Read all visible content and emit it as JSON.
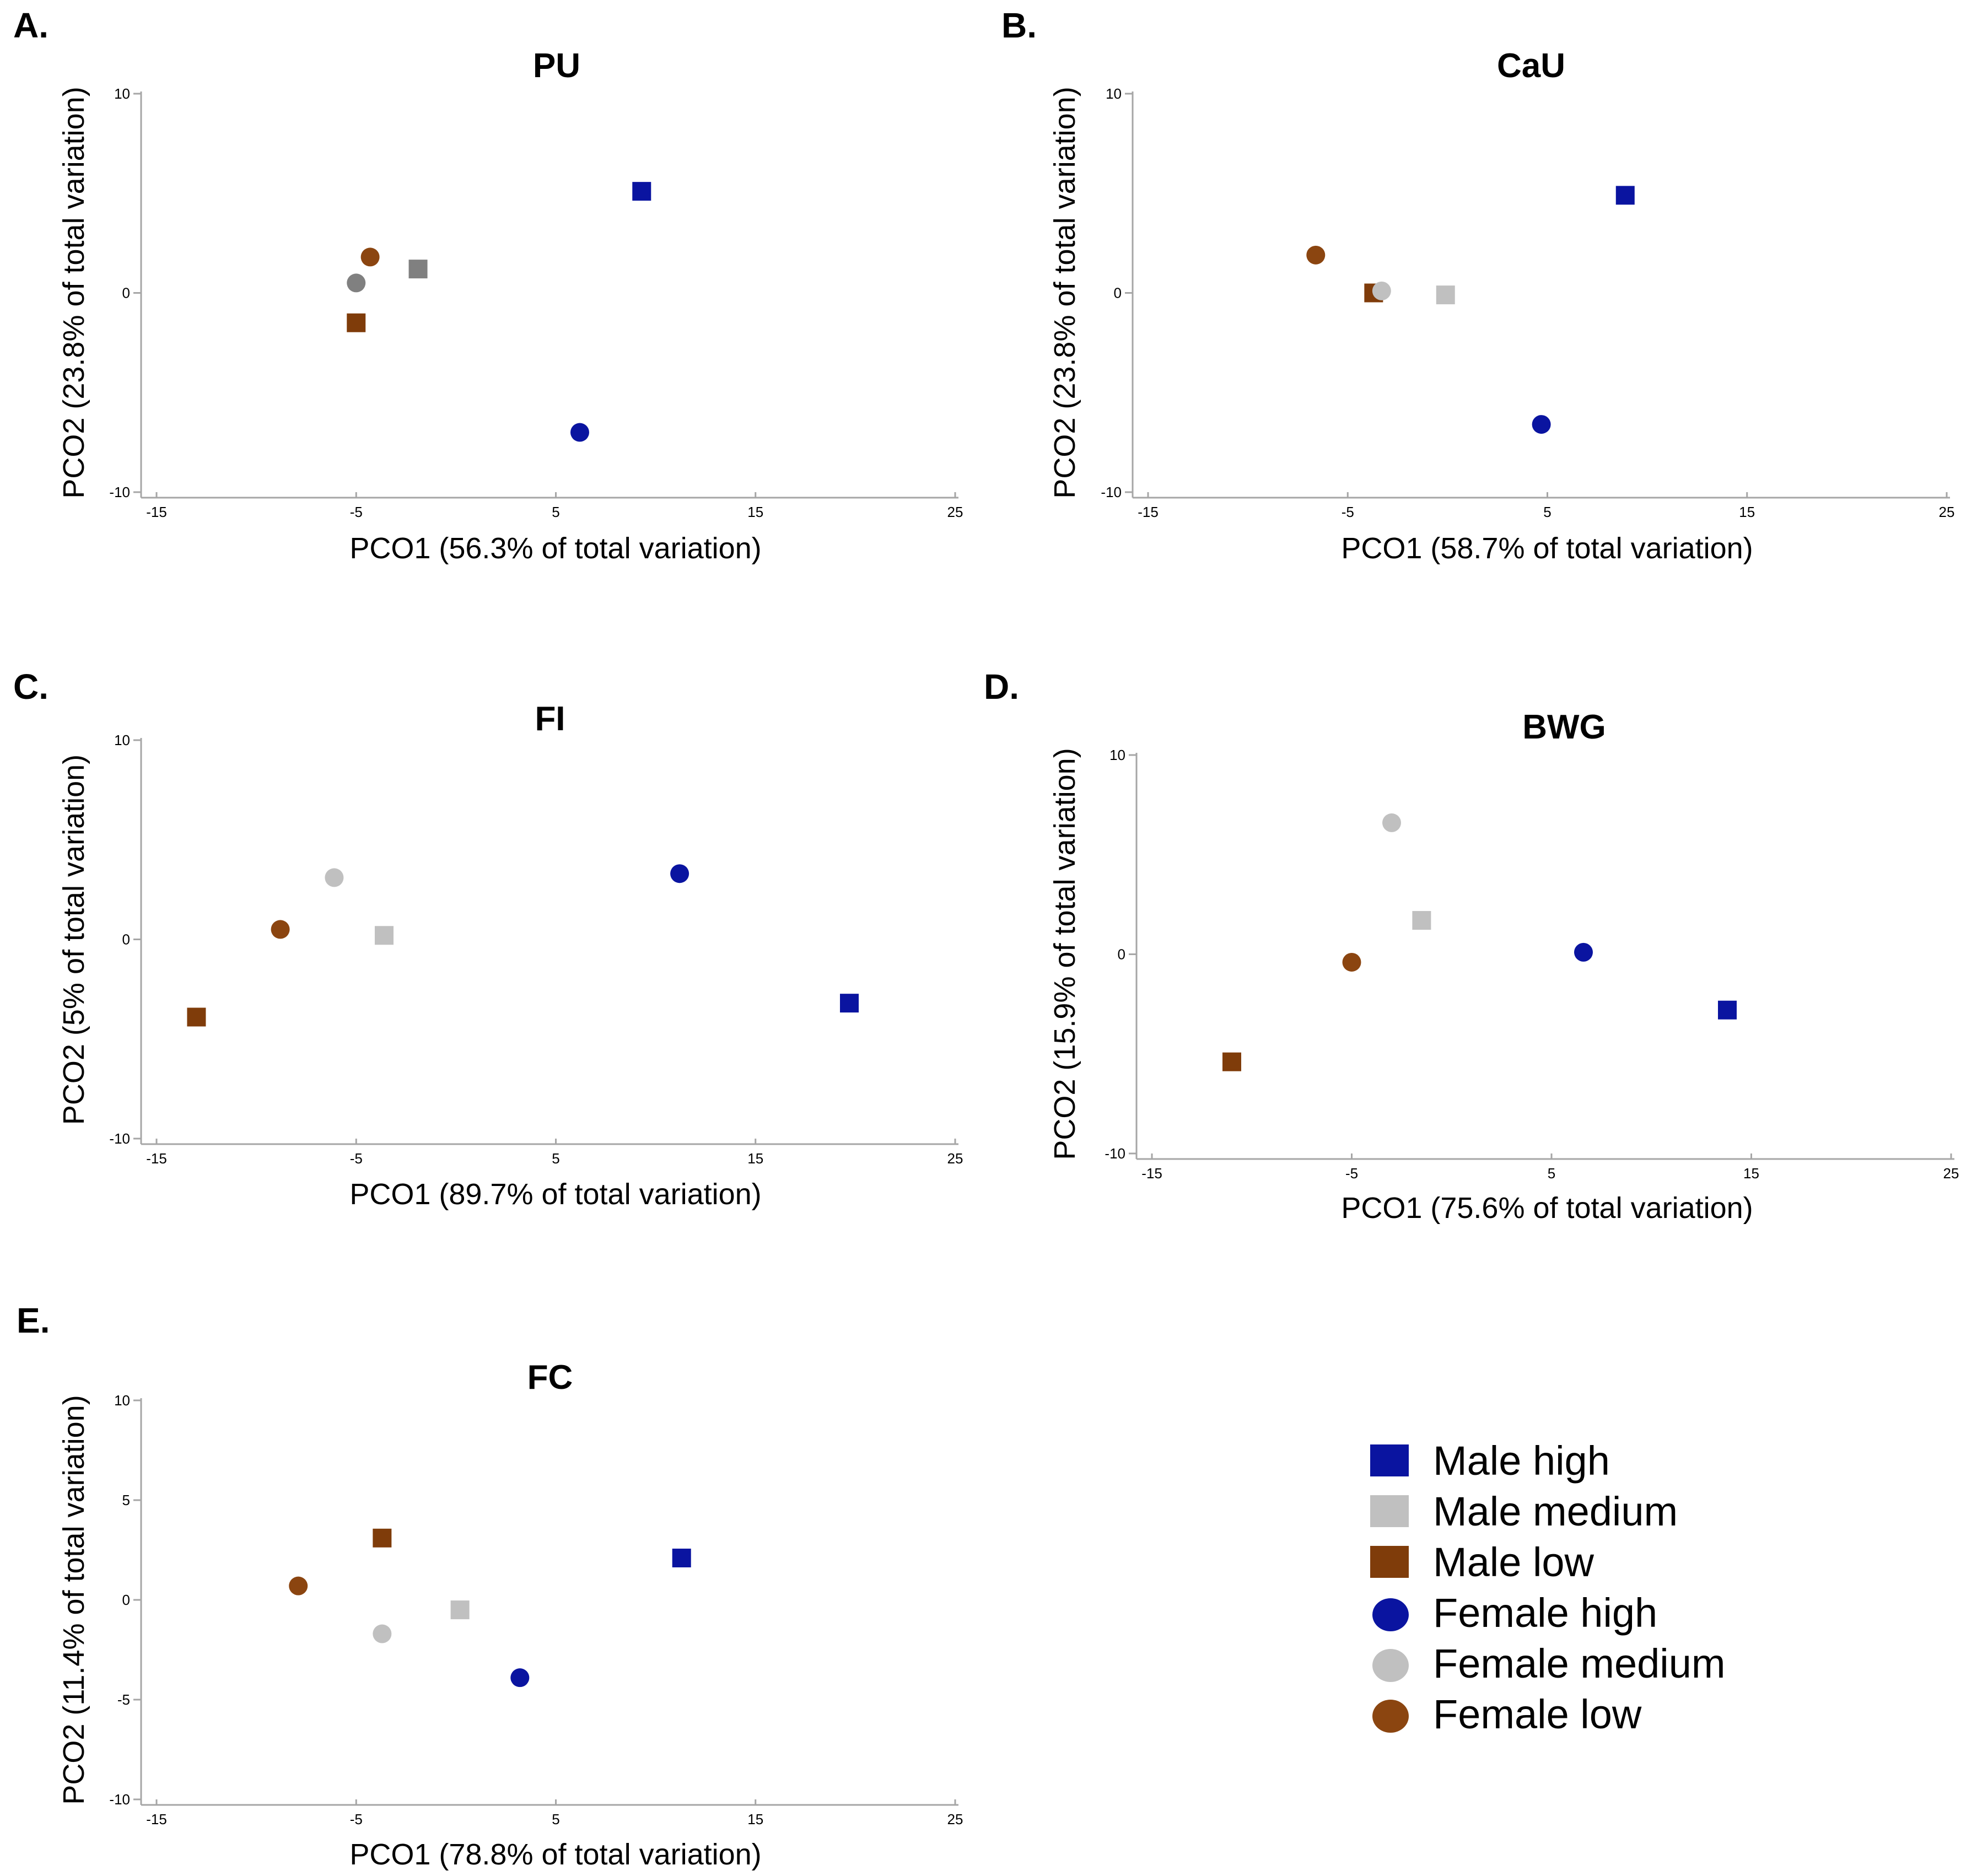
{
  "colors": {
    "male_high": "#0a14a0",
    "male_medium": "#c0c0c0",
    "male_low": "#7f3c0a",
    "female_high": "#0a14a0",
    "female_medium": "#c0c0c0",
    "female_low": "#8b4510",
    "gray_dark": "#808080"
  },
  "legend": [
    {
      "label": "Male high",
      "shape": "square",
      "color": "#0a14a0"
    },
    {
      "label": "Male medium",
      "shape": "square",
      "color": "#c0c0c0"
    },
    {
      "label": "Male low",
      "shape": "square",
      "color": "#7f3c0a"
    },
    {
      "label": "Female high",
      "shape": "circle",
      "color": "#0a14a0"
    },
    {
      "label": "Female medium",
      "shape": "circle",
      "color": "#c0c0c0"
    },
    {
      "label": "Female low",
      "shape": "circle",
      "color": "#8b4510"
    }
  ],
  "chart_data": [
    {
      "type": "scatter",
      "panel": "A.",
      "title": "PU",
      "xlabel": "PCO1 (56.3% of total variation)",
      "ylabel": "PCO2 (23.8% of total variation)",
      "xlim": [
        -15,
        25
      ],
      "ylim": [
        -10,
        10
      ],
      "xticks": [
        -15,
        -5,
        5,
        15,
        25
      ],
      "yticks": [
        -10,
        0,
        10
      ],
      "points": [
        {
          "series": "Male high",
          "shape": "square",
          "color": "#0a14a0",
          "x": 9.3,
          "y": 5.1
        },
        {
          "series": "Male medium",
          "shape": "square",
          "color": "#808080",
          "x": -1.9,
          "y": 1.2
        },
        {
          "series": "Male low",
          "shape": "square",
          "color": "#7f3c0a",
          "x": -5.0,
          "y": -1.5
        },
        {
          "series": "Female high",
          "shape": "circle",
          "color": "#0a14a0",
          "x": 6.2,
          "y": -7.0
        },
        {
          "series": "Female medium",
          "shape": "circle",
          "color": "#808080",
          "x": -5.0,
          "y": 0.5
        },
        {
          "series": "Female low",
          "shape": "circle",
          "color": "#8b4510",
          "x": -4.3,
          "y": 1.8
        }
      ]
    },
    {
      "type": "scatter",
      "panel": "B.",
      "title": "CaU",
      "xlabel": "PCO1 (58.7% of total variation)",
      "ylabel": "PCO2 (23.8% of total variation)",
      "xlim": [
        -15,
        25
      ],
      "ylim": [
        -10,
        10
      ],
      "xticks": [
        -15,
        -5,
        5,
        15,
        25
      ],
      "yticks": [
        -10,
        0,
        10
      ],
      "points": [
        {
          "series": "Male high",
          "shape": "square",
          "color": "#0a14a0",
          "x": 8.9,
          "y": 4.9
        },
        {
          "series": "Male medium",
          "shape": "square",
          "color": "#c0c0c0",
          "x": -0.1,
          "y": -0.1
        },
        {
          "series": "Male low",
          "shape": "square",
          "color": "#7f3c0a",
          "x": -3.7,
          "y": 0.0
        },
        {
          "series": "Female high",
          "shape": "circle",
          "color": "#0a14a0",
          "x": 4.7,
          "y": -6.6
        },
        {
          "series": "Female medium",
          "shape": "circle",
          "color": "#c0c0c0",
          "x": -3.3,
          "y": 0.1
        },
        {
          "series": "Female low",
          "shape": "circle",
          "color": "#8b4510",
          "x": -6.6,
          "y": 1.9
        }
      ]
    },
    {
      "type": "scatter",
      "panel": "C.",
      "title": "FI",
      "xlabel": "PCO1 (89.7% of total variation)",
      "ylabel": "PCO2 (5% of total variation)",
      "xlim": [
        -15,
        25
      ],
      "ylim": [
        -10,
        10
      ],
      "xticks": [
        -15,
        -5,
        5,
        15,
        25
      ],
      "yticks": [
        -10,
        0,
        10
      ],
      "points": [
        {
          "series": "Male high",
          "shape": "square",
          "color": "#0a14a0",
          "x": 19.7,
          "y": -3.2
        },
        {
          "series": "Male medium",
          "shape": "square",
          "color": "#c0c0c0",
          "x": -3.6,
          "y": 0.2
        },
        {
          "series": "Male low",
          "shape": "square",
          "color": "#7f3c0a",
          "x": -13.0,
          "y": -3.9
        },
        {
          "series": "Female high",
          "shape": "circle",
          "color": "#0a14a0",
          "x": 11.2,
          "y": 3.3
        },
        {
          "series": "Female medium",
          "shape": "circle",
          "color": "#c0c0c0",
          "x": -6.1,
          "y": 3.1
        },
        {
          "series": "Female low",
          "shape": "circle",
          "color": "#8b4510",
          "x": -8.8,
          "y": 0.5
        }
      ]
    },
    {
      "type": "scatter",
      "panel": "D.",
      "title": "BWG",
      "xlabel": "PCO1 (75.6% of total variation)",
      "ylabel": "PCO2 (15.9% of total variation)",
      "xlim": [
        -15,
        25
      ],
      "ylim": [
        -10,
        10
      ],
      "xticks": [
        -15,
        -5,
        5,
        15,
        25
      ],
      "yticks": [
        -10,
        0,
        10
      ],
      "points": [
        {
          "series": "Male high",
          "shape": "square",
          "color": "#0a14a0",
          "x": 13.8,
          "y": -2.8
        },
        {
          "series": "Male medium",
          "shape": "square",
          "color": "#c0c0c0",
          "x": -1.5,
          "y": 1.7
        },
        {
          "series": "Male low",
          "shape": "square",
          "color": "#7f3c0a",
          "x": -11.0,
          "y": -5.4
        },
        {
          "series": "Female high",
          "shape": "circle",
          "color": "#0a14a0",
          "x": 6.6,
          "y": 0.1
        },
        {
          "series": "Female medium",
          "shape": "circle",
          "color": "#c0c0c0",
          "x": -3.0,
          "y": 6.6
        },
        {
          "series": "Female low",
          "shape": "circle",
          "color": "#8b4510",
          "x": -5.0,
          "y": -0.4
        }
      ]
    },
    {
      "type": "scatter",
      "panel": "E.",
      "title": "FC",
      "xlabel": "PCO1 (78.8% of total variation)",
      "ylabel": "PCO2 (11.4% of total variation)",
      "xlim": [
        -15,
        25
      ],
      "ylim": [
        -10,
        10
      ],
      "xticks": [
        -15,
        -5,
        5,
        15,
        25
      ],
      "yticks": [
        -10,
        -5,
        0,
        5,
        10
      ],
      "points": [
        {
          "series": "Male high",
          "shape": "square",
          "color": "#0a14a0",
          "x": 11.3,
          "y": 2.1
        },
        {
          "series": "Male medium",
          "shape": "square",
          "color": "#c0c0c0",
          "x": 0.2,
          "y": -0.5
        },
        {
          "series": "Male low",
          "shape": "square",
          "color": "#7f3c0a",
          "x": -3.7,
          "y": 3.1
        },
        {
          "series": "Female high",
          "shape": "circle",
          "color": "#0a14a0",
          "x": 3.2,
          "y": -3.9
        },
        {
          "series": "Female medium",
          "shape": "circle",
          "color": "#c0c0c0",
          "x": -3.7,
          "y": -1.7
        },
        {
          "series": "Female low",
          "shape": "circle",
          "color": "#8b4510",
          "x": -7.9,
          "y": 0.7
        }
      ]
    }
  ]
}
